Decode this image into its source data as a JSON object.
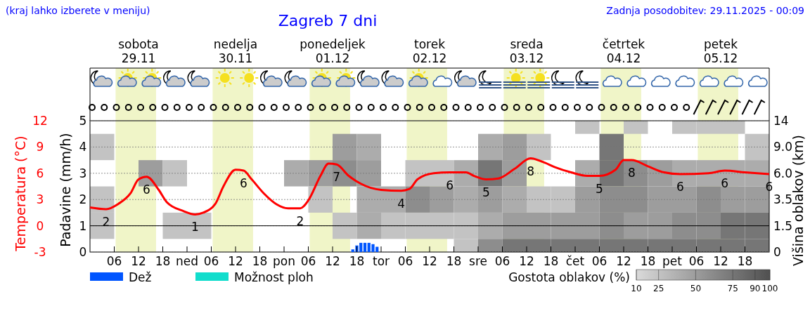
{
  "chart_data": [
    {
      "type": "line",
      "title": "Zagreb 7 dni",
      "annotations": [
        "(kraj lahko izberete v meniju)",
        "Zadnja posodobitev: 29.11.2025 - 00:09",
        {
          "text": "2",
          "x": "2025-11-29T04:00",
          "y": 1.9
        },
        {
          "text": "6",
          "x": "2025-11-29T14:00",
          "y": 5.6
        },
        {
          "text": "1",
          "x": "2025-11-30T02:00",
          "y": 1.3
        },
        {
          "text": "6",
          "x": "2025-11-30T14:00",
          "y": 6.3
        },
        {
          "text": "2",
          "x": "2025-12-01T04:00",
          "y": 2.0
        },
        {
          "text": "7",
          "x": "2025-12-01T13:00",
          "y": 7.0
        },
        {
          "text": "4",
          "x": "2025-12-02T05:00",
          "y": 4.0
        },
        {
          "text": "6",
          "x": "2025-12-02T17:00",
          "y": 6.1
        },
        {
          "text": "5",
          "x": "2025-12-03T02:00",
          "y": 5.3
        },
        {
          "text": "8",
          "x": "2025-12-03T13:00",
          "y": 7.7
        },
        {
          "text": "5",
          "x": "2025-12-04T06:00",
          "y": 5.7
        },
        {
          "text": "8",
          "x": "2025-12-04T14:00",
          "y": 7.5
        },
        {
          "text": "6",
          "x": "2025-12-05T02:00",
          "y": 5.9
        },
        {
          "text": "6",
          "x": "2025-12-05T13:00",
          "y": 6.3
        },
        {
          "text": "6",
          "x": "2025-12-06T00:00",
          "y": 5.9
        }
      ],
      "ylabel": "Temperatura (°C)",
      "y2label": "Padavine (mm/h)",
      "xlim": [
        "2025-11-29T00:00",
        "2025-12-06T00:00"
      ],
      "xticks": [
        {
          "value": "2025-11-29T06:00",
          "label": "06"
        },
        {
          "value": "2025-11-29T12:00",
          "label": "12"
        },
        {
          "value": "2025-11-29T18:00",
          "label": "18"
        },
        {
          "value": "2025-11-30T00:00",
          "label": "ned"
        },
        {
          "value": "2025-11-30T06:00",
          "label": "06"
        },
        {
          "value": "2025-11-30T12:00",
          "label": "12"
        },
        {
          "value": "2025-11-30T18:00",
          "label": "18"
        },
        {
          "value": "2025-12-01T00:00",
          "label": "pon"
        },
        {
          "value": "2025-12-01T06:00",
          "label": "06"
        },
        {
          "value": "2025-12-01T12:00",
          "label": "12"
        },
        {
          "value": "2025-12-01T18:00",
          "label": "18"
        },
        {
          "value": "2025-12-02T00:00",
          "label": "tor"
        },
        {
          "value": "2025-12-02T06:00",
          "label": "06"
        },
        {
          "value": "2025-12-02T12:00",
          "label": "12"
        },
        {
          "value": "2025-12-02T18:00",
          "label": "18"
        },
        {
          "value": "2025-12-03T00:00",
          "label": "sre"
        },
        {
          "value": "2025-12-03T06:00",
          "label": "06"
        },
        {
          "value": "2025-12-03T12:00",
          "label": "12"
        },
        {
          "value": "2025-12-03T18:00",
          "label": "18"
        },
        {
          "value": "2025-12-04T00:00",
          "label": "čet"
        },
        {
          "value": "2025-12-04T06:00",
          "label": "06"
        },
        {
          "value": "2025-12-04T12:00",
          "label": "12"
        },
        {
          "value": "2025-12-04T18:00",
          "label": "18"
        },
        {
          "value": "2025-12-05T00:00",
          "label": "pet"
        },
        {
          "value": "2025-12-05T06:00",
          "label": "06"
        },
        {
          "value": "2025-12-05T12:00",
          "label": "12"
        },
        {
          "value": "2025-12-05T18:00",
          "label": "18"
        }
      ],
      "x2lim": [
        "2025-11-29T00:00",
        "2025-12-06T00:00"
      ],
      "x2ticks": [
        {
          "value": "2025-11-29T12:00",
          "label": "sobota\n29.11"
        },
        {
          "value": "2025-11-30T12:00",
          "label": "nedelja\n30.11"
        },
        {
          "value": "2025-12-01T12:00",
          "label": "ponedeljek\n01.12"
        },
        {
          "value": "2025-12-02T12:00",
          "label": "torek\n02.12"
        },
        {
          "value": "2025-12-03T12:00",
          "label": "sreda\n03.12"
        },
        {
          "value": "2025-12-04T12:00",
          "label": "četrtek\n04.12"
        },
        {
          "value": "2025-12-05T12:00",
          "label": "petek\n05.12"
        }
      ],
      "ylim": [
        -3,
        12
      ],
      "yticks": [
        -3,
        0,
        3,
        6,
        9,
        12
      ],
      "y2lim": [
        0,
        5
      ],
      "y2ticks": [
        0,
        1,
        2,
        3,
        4,
        5
      ],
      "grid": "y2",
      "legend": "bottom",
      "line_style": "solid",
      "bands": [
        {
          "axis": "x",
          "from": "2025-11-29T06:20",
          "to": "2025-11-29T16:20",
          "color": "#f0f5c8"
        },
        {
          "axis": "x",
          "from": "2025-11-30T06:20",
          "to": "2025-11-30T16:20",
          "color": "#f0f5c8"
        },
        {
          "axis": "x",
          "from": "2025-12-01T06:20",
          "to": "2025-12-01T16:20",
          "color": "#f0f5c8"
        },
        {
          "axis": "x",
          "from": "2025-12-02T06:20",
          "to": "2025-12-02T16:20",
          "color": "#f0f5c8"
        },
        {
          "axis": "x",
          "from": "2025-12-03T06:20",
          "to": "2025-12-03T16:20",
          "color": "#f0f5c8"
        },
        {
          "axis": "x",
          "from": "2025-12-04T06:20",
          "to": "2025-12-04T16:20",
          "color": "#f0f5c8"
        },
        {
          "axis": "x",
          "from": "2025-12-05T06:20",
          "to": "2025-12-05T16:20",
          "color": "#f0f5c8"
        }
      ],
      "ref_lines": [
        {
          "axis": "y",
          "value": 0,
          "color": "#000000",
          "line_style": "solid"
        }
      ],
      "series": [
        {
          "color": "#ff0000",
          "x": [
            "2025-11-29T00:00",
            "2025-11-29T04:00",
            "2025-11-29T07:00",
            "2025-11-29T10:00",
            "2025-11-29T12:00",
            "2025-11-29T14:00",
            "2025-11-29T17:00",
            "2025-11-29T19:00",
            "2025-11-29T23:00",
            "2025-11-30T02:00",
            "2025-11-30T04:00",
            "2025-11-30T07:00",
            "2025-11-30T09:00",
            "2025-11-30T12:00",
            "2025-11-30T14:00",
            "2025-11-30T16:00",
            "2025-11-30T19:00",
            "2025-11-30T22:00",
            "2025-12-01T01:00",
            "2025-12-01T04:00",
            "2025-12-01T06:00",
            "2025-12-01T09:00",
            "2025-12-01T11:00",
            "2025-12-01T13:00",
            "2025-12-01T16:00",
            "2025-12-01T19:00",
            "2025-12-02T00:00",
            "2025-12-02T05:00",
            "2025-12-02T07:00",
            "2025-12-02T09:00",
            "2025-12-02T13:00",
            "2025-12-02T17:00",
            "2025-12-02T21:00",
            "2025-12-02T23:00",
            "2025-12-03T02:00",
            "2025-12-03T05:00",
            "2025-12-03T09:00",
            "2025-12-03T13:00",
            "2025-12-03T16:00",
            "2025-12-03T19:00",
            "2025-12-03T23:00",
            "2025-12-04T03:00",
            "2025-12-04T06:00",
            "2025-12-04T10:00",
            "2025-12-04T12:00",
            "2025-12-04T14:00",
            "2025-12-04T18:00",
            "2025-12-04T22:00",
            "2025-12-05T02:00",
            "2025-12-05T09:00",
            "2025-12-05T13:00",
            "2025-12-05T18:00",
            "2025-12-06T00:00"
          ],
          "values": [
            2.1,
            1.9,
            2.5,
            3.7,
            5.3,
            5.6,
            4.1,
            2.7,
            1.7,
            1.3,
            1.5,
            2.5,
            4.5,
            6.4,
            6.3,
            5.3,
            3.7,
            2.5,
            2.0,
            2.0,
            2.9,
            5.7,
            7.1,
            7.0,
            5.7,
            4.8,
            4.1,
            4.0,
            4.2,
            5.3,
            6.0,
            6.1,
            6.1,
            5.7,
            5.3,
            5.4,
            6.5,
            7.7,
            7.3,
            6.7,
            6.1,
            5.7,
            5.7,
            6.4,
            7.5,
            7.5,
            6.8,
            6.1,
            5.9,
            6.0,
            6.3,
            6.1,
            5.9
          ]
        },
        {
          "type": "bar",
          "name": "Dež",
          "color": "#0055ff",
          "axis": "y2",
          "x": [
            "2025-12-01T17:00",
            "2025-12-01T18:00",
            "2025-12-01T19:00",
            "2025-12-01T20:00",
            "2025-12-01T21:00",
            "2025-12-01T22:00",
            "2025-12-01T23:00"
          ],
          "values": [
            0.1,
            0.25,
            0.35,
            0.35,
            0.35,
            0.3,
            0.2
          ]
        },
        {
          "type": "bar",
          "name": "Možnost ploh",
          "color": "#11ddcc",
          "axis": "y2",
          "values": [
            null
          ]
        }
      ]
    },
    {
      "type": "heatmap",
      "y2label": "Višina oblakov (km)",
      "clabel": "Gostota oblakov (%)",
      "clim": [
        10,
        100
      ],
      "cticks": [
        10,
        25,
        50,
        75,
        90,
        100
      ],
      "categories": [
        null,
        null,
        null,
        null,
        null,
        null,
        null,
        null,
        null,
        null,
        null,
        null,
        null,
        null,
        null,
        null,
        null,
        null,
        null,
        null,
        null,
        null,
        null,
        null,
        null,
        null,
        null,
        null
      ],
      "y_categories": [
        "14",
        "9.0",
        "6.0",
        "3.5",
        "1.5",
        "0"
      ],
      "cells": [
        [
          null,
          null,
          null,
          null,
          null,
          null,
          null,
          null,
          null,
          null,
          null,
          null,
          null,
          null,
          null,
          null,
          null,
          null,
          null,
          null,
          25,
          null,
          25,
          null,
          25,
          25,
          25,
          null
        ],
        [
          25,
          null,
          null,
          null,
          null,
          null,
          null,
          null,
          null,
          null,
          50,
          40,
          null,
          null,
          null,
          null,
          40,
          50,
          25,
          null,
          null,
          75,
          null,
          null,
          null,
          null,
          null,
          25
        ],
        [
          null,
          null,
          50,
          25,
          null,
          null,
          null,
          null,
          40,
          50,
          60,
          50,
          null,
          25,
          25,
          40,
          75,
          50,
          null,
          null,
          40,
          75,
          60,
          50,
          40,
          40,
          40,
          40
        ],
        [
          25,
          null,
          null,
          null,
          null,
          null,
          null,
          null,
          null,
          25,
          null,
          40,
          40,
          60,
          50,
          40,
          50,
          40,
          25,
          25,
          50,
          60,
          60,
          50,
          50,
          60,
          50,
          50
        ],
        [
          25,
          null,
          null,
          25,
          25,
          null,
          null,
          null,
          null,
          null,
          25,
          40,
          25,
          25,
          25,
          25,
          40,
          50,
          50,
          50,
          50,
          60,
          50,
          50,
          60,
          60,
          75,
          75
        ],
        [
          null,
          null,
          null,
          null,
          null,
          null,
          null,
          null,
          null,
          null,
          null,
          null,
          null,
          null,
          null,
          25,
          60,
          75,
          75,
          75,
          75,
          75,
          75,
          75,
          75,
          75,
          75,
          75
        ]
      ]
    }
  ]
}
